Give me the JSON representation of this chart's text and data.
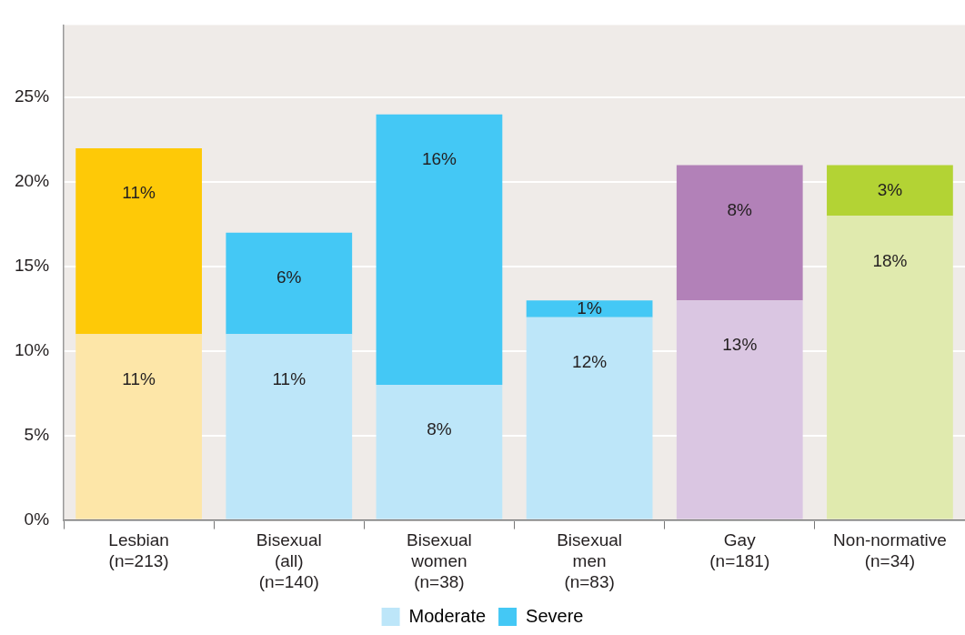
{
  "chart_data": {
    "type": "bar",
    "stacked": true,
    "categories": [
      "Lesbian\n(n=213)",
      "Bisexual\n(all)\n(n=140)",
      "Bisexual\nwomen\n(n=38)",
      "Bisexual\nmen\n(n=83)",
      "Gay\n(n=181)",
      "Non-normative\n(n=34)"
    ],
    "series": [
      {
        "name": "Moderate",
        "color": "#bde6f9",
        "colors": [
          "#fde6a8",
          "#bde6f9",
          "#bde6f9",
          "#bde6f9",
          "#dac6e2",
          "#e0eaae"
        ],
        "values": [
          11,
          11,
          8,
          12,
          13,
          18
        ],
        "value_labels": [
          "11%",
          "11%",
          "8%",
          "12%",
          "13%",
          "18%"
        ]
      },
      {
        "name": "Severe",
        "color": "#44c8f5",
        "colors": [
          "#fec907",
          "#44c8f5",
          "#44c8f5",
          "#44c8f5",
          "#b281b8",
          "#b3d334"
        ],
        "values": [
          11,
          6,
          16,
          1,
          8,
          3
        ],
        "value_labels": [
          "11%",
          "6%",
          "16%",
          "1%",
          "8%",
          "3%"
        ]
      }
    ],
    "ylim": [
      0,
      29.3
    ],
    "yticks": [
      {
        "value": 0,
        "label": "0%"
      },
      {
        "value": 5,
        "label": "5%"
      },
      {
        "value": 10,
        "label": "10%"
      },
      {
        "value": 15,
        "label": "15%"
      },
      {
        "value": 20,
        "label": "20%"
      },
      {
        "value": 25,
        "label": "25%"
      }
    ],
    "grid": "y",
    "legend": "bottom"
  }
}
